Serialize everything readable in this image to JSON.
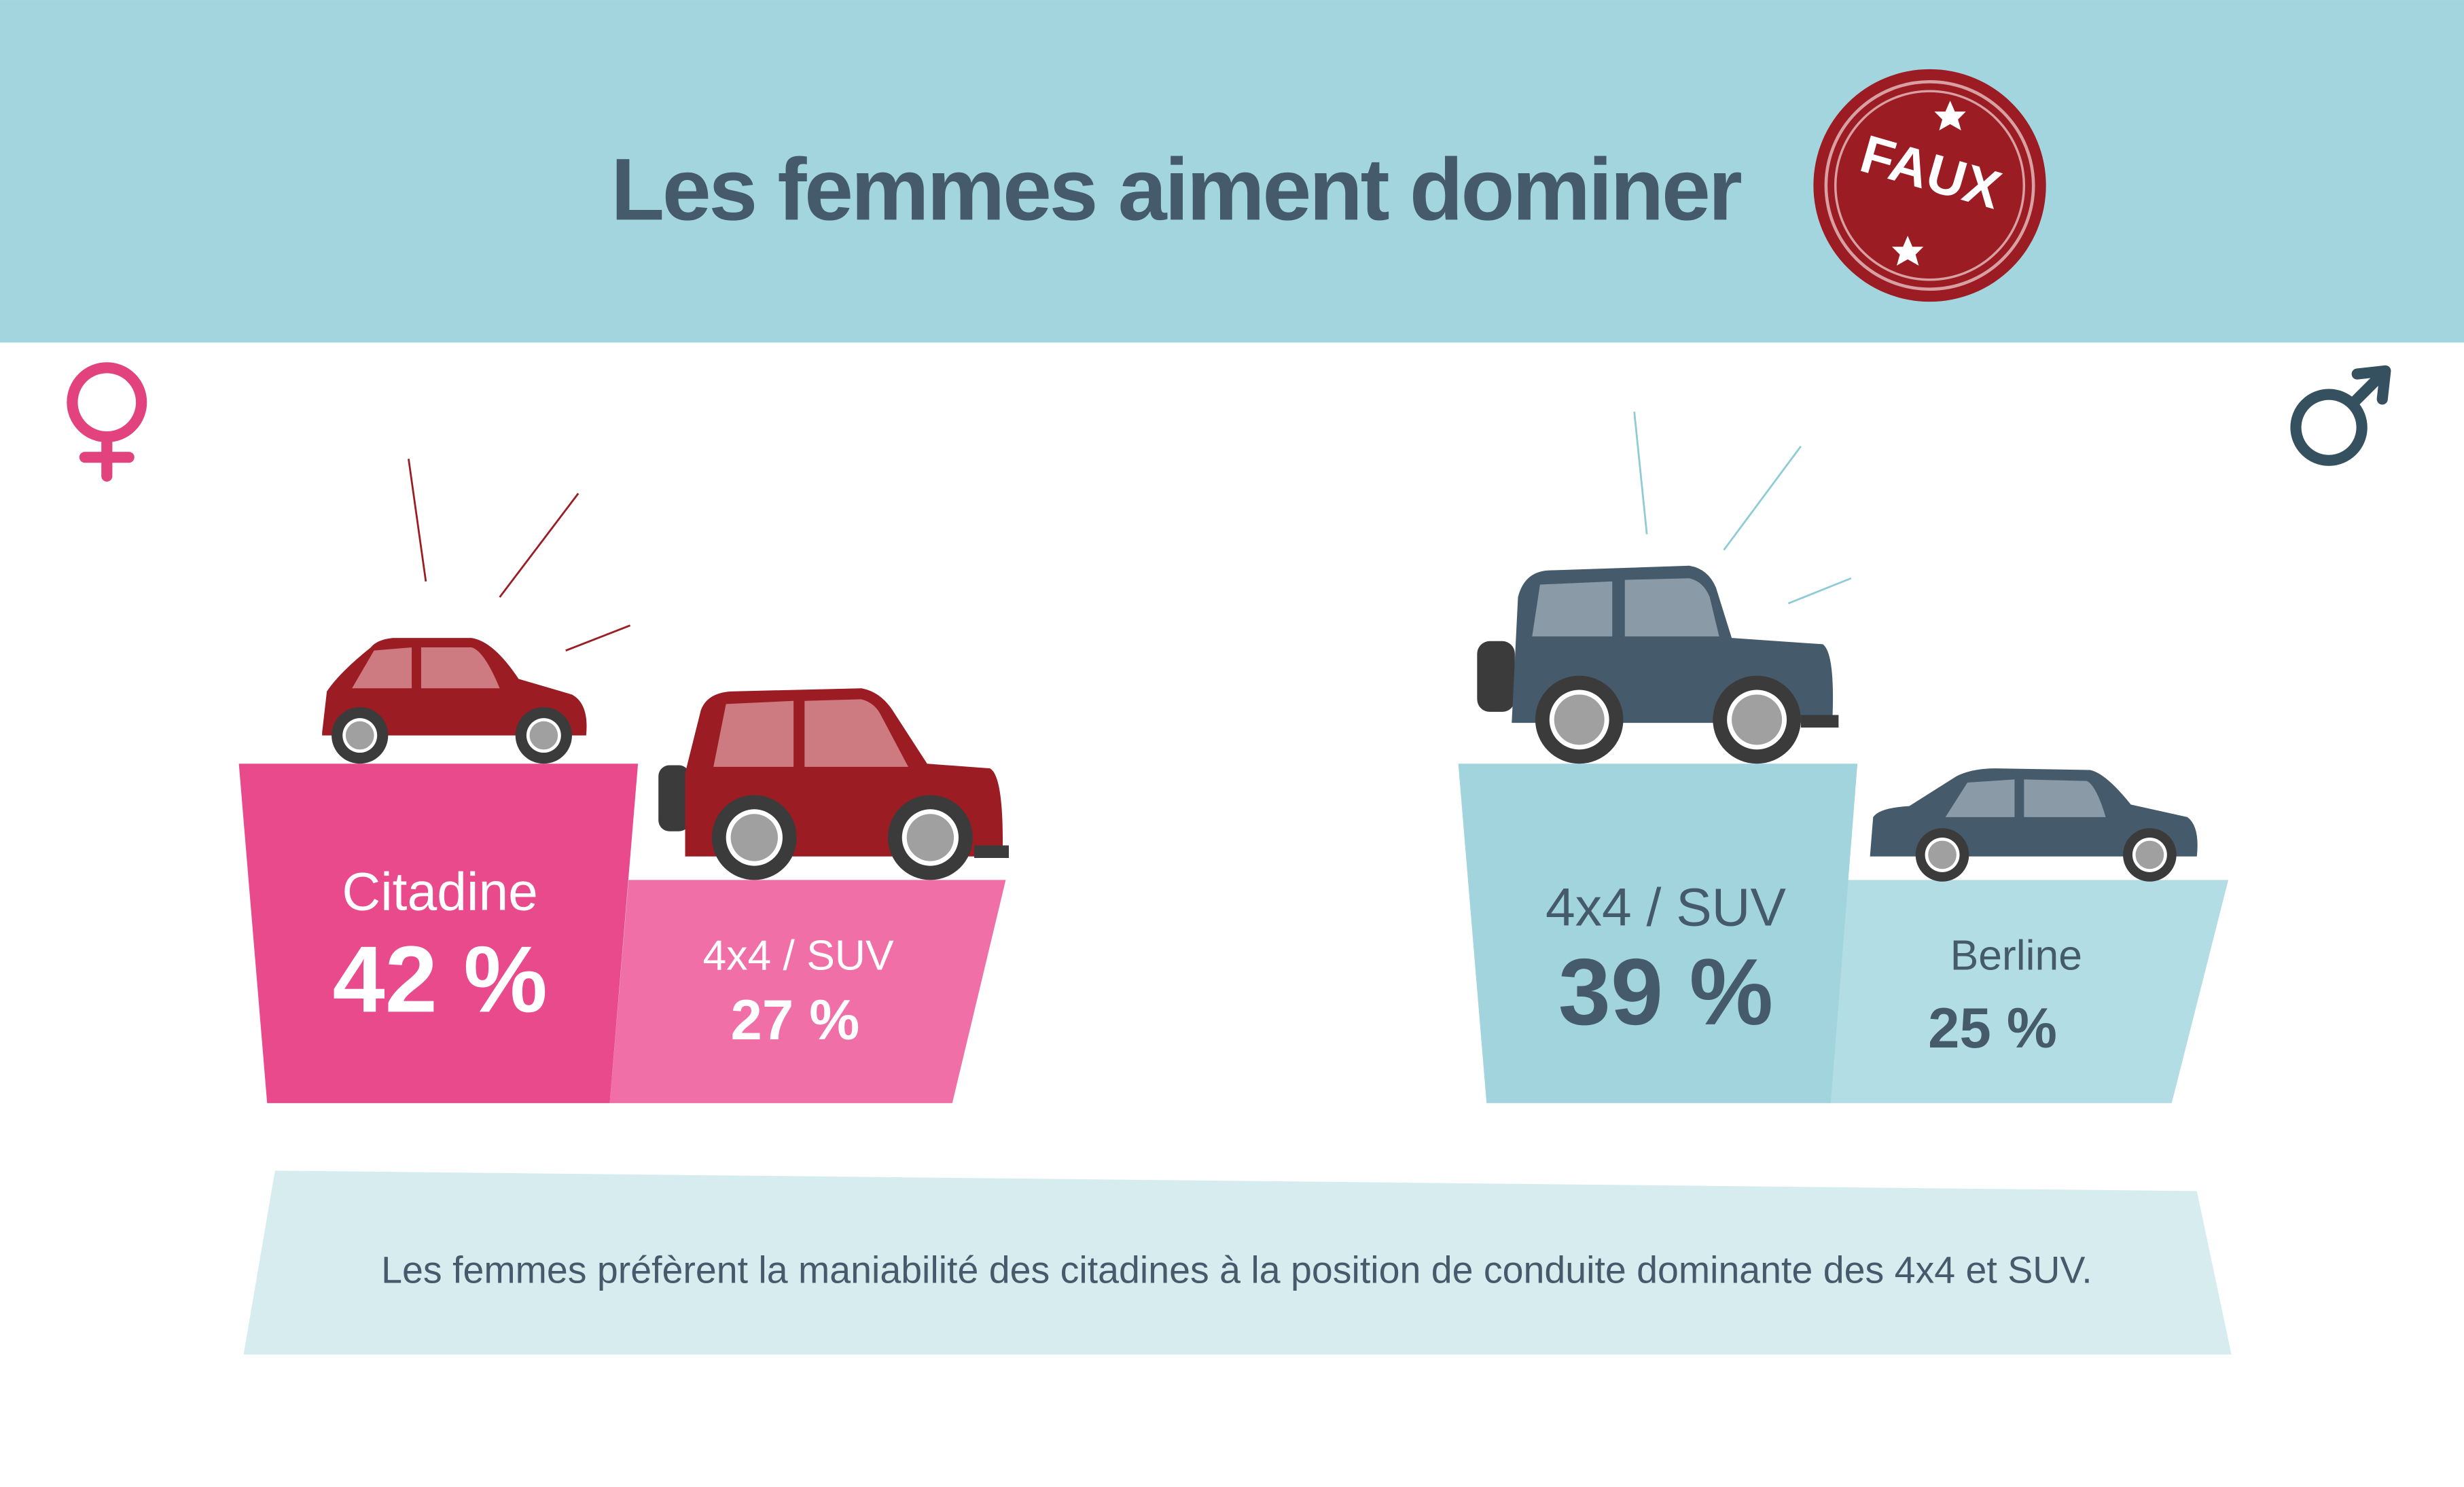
{
  "header": {
    "title": "Les femmes aiment dominer",
    "stamp": "FAUX"
  },
  "women": {
    "first": {
      "label": "Citadine",
      "value": "42 %"
    },
    "second": {
      "label": "4x4 / SUV",
      "value": "27 %"
    }
  },
  "men": {
    "first": {
      "label": "4x4 / SUV",
      "value": "39 %"
    },
    "second": {
      "label": "Berline",
      "value": "25 %"
    }
  },
  "footnote": "Les femmes préfèrent la maniabilité des citadines à la position de conduite dominante des 4x4 et SUV."
}
